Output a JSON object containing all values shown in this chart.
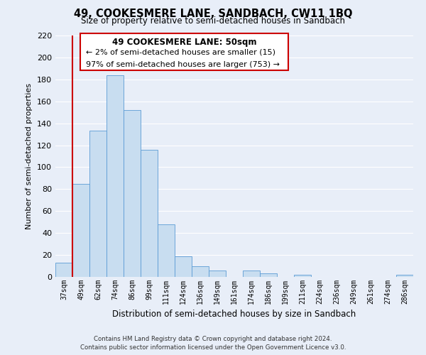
{
  "title": "49, COOKESMERE LANE, SANDBACH, CW11 1BQ",
  "subtitle": "Size of property relative to semi-detached houses in Sandbach",
  "xlabel": "Distribution of semi-detached houses by size in Sandbach",
  "ylabel": "Number of semi-detached properties",
  "bin_labels": [
    "37sqm",
    "49sqm",
    "62sqm",
    "74sqm",
    "86sqm",
    "99sqm",
    "111sqm",
    "124sqm",
    "136sqm",
    "149sqm",
    "161sqm",
    "174sqm",
    "186sqm",
    "199sqm",
    "211sqm",
    "224sqm",
    "236sqm",
    "249sqm",
    "261sqm",
    "274sqm",
    "286sqm"
  ],
  "bar_heights": [
    13,
    85,
    133,
    184,
    152,
    116,
    48,
    19,
    10,
    6,
    0,
    6,
    3,
    0,
    2,
    0,
    0,
    0,
    0,
    0,
    2
  ],
  "bar_color": "#c8ddf0",
  "bar_edge_color": "#5b9bd5",
  "highlight_color": "#cc0000",
  "ylim": [
    0,
    220
  ],
  "yticks": [
    0,
    20,
    40,
    60,
    80,
    100,
    120,
    140,
    160,
    180,
    200,
    220
  ],
  "annotation_title": "49 COOKESMERE LANE: 50sqm",
  "annotation_line1": "← 2% of semi-detached houses are smaller (15)",
  "annotation_line2": "97% of semi-detached houses are larger (753) →",
  "footer_line1": "Contains HM Land Registry data © Crown copyright and database right 2024.",
  "footer_line2": "Contains public sector information licensed under the Open Government Licence v3.0.",
  "background_color": "#e8eef8",
  "grid_color": "#ffffff",
  "annotation_box_bg": "#ffffff",
  "annotation_box_edge": "#cc0000"
}
